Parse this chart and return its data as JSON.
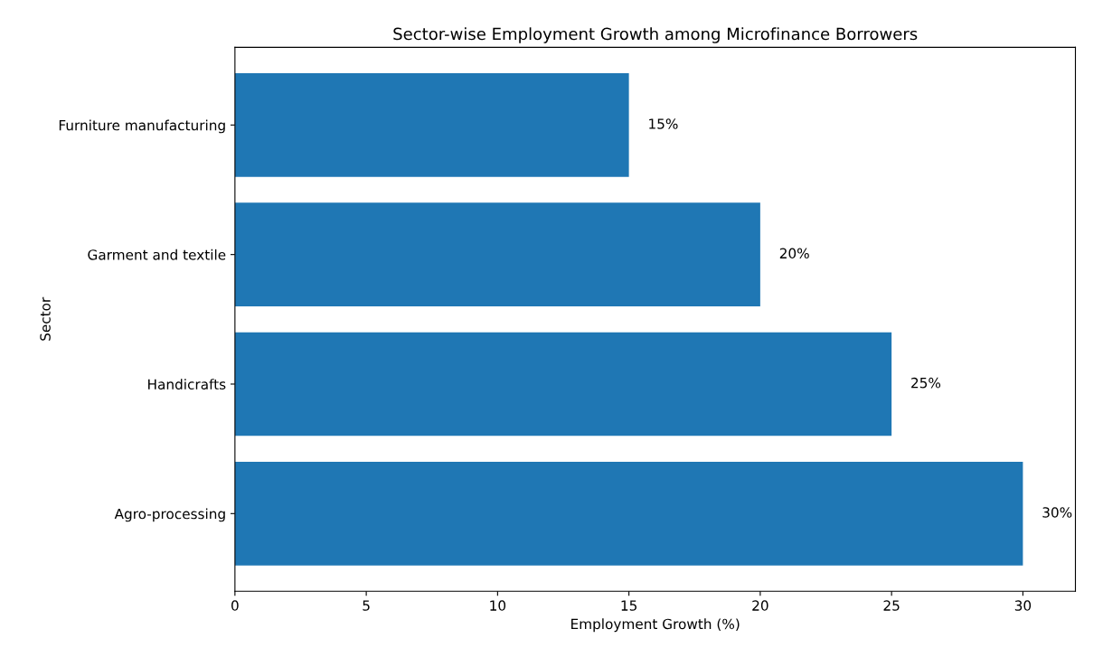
{
  "chart_data": {
    "type": "bar",
    "orientation": "horizontal",
    "title": "Sector-wise Employment Growth among Microfinance Borrowers",
    "xlabel": "Employment Growth (%)",
    "ylabel": "Sector",
    "categories": [
      "Furniture manufacturing",
      "Garment and textile",
      "Handicrafts",
      "Agro-processing"
    ],
    "values": [
      15,
      20,
      25,
      30
    ],
    "value_labels": [
      "15%",
      "20%",
      "25%",
      "30%"
    ],
    "color": "#1f77b4",
    "xlim": [
      0,
      32
    ],
    "xticks": [
      0,
      5,
      10,
      15,
      20,
      25,
      30
    ]
  }
}
